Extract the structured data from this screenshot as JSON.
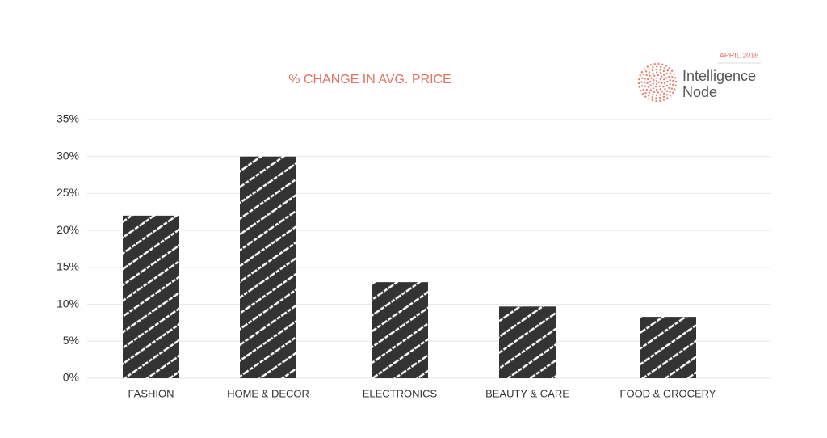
{
  "chart_data": {
    "type": "bar",
    "title": "% CHANGE IN AVG. PRICE",
    "date_label": "APRIL 2016",
    "brand": [
      "Intelligence",
      "Node"
    ],
    "categories": [
      "FASHION",
      "HOME & DECOR",
      "ELECTRONICS",
      "BEAUTY & CARE",
      "FOOD & GROCERY"
    ],
    "values": [
      22,
      30,
      13,
      9.7,
      8.3
    ],
    "color": "#333333",
    "ylim": [
      0,
      35
    ],
    "yticks": [
      {
        "value": 0,
        "label": "0%"
      },
      {
        "value": 5,
        "label": "5%"
      },
      {
        "value": 10,
        "label": "10%"
      },
      {
        "value": 15,
        "label": "15%"
      },
      {
        "value": 20,
        "label": "20%"
      },
      {
        "value": 25,
        "label": "25%"
      },
      {
        "value": 30,
        "label": "30%"
      },
      {
        "value": 35,
        "label": "35%"
      }
    ],
    "grid": true
  }
}
